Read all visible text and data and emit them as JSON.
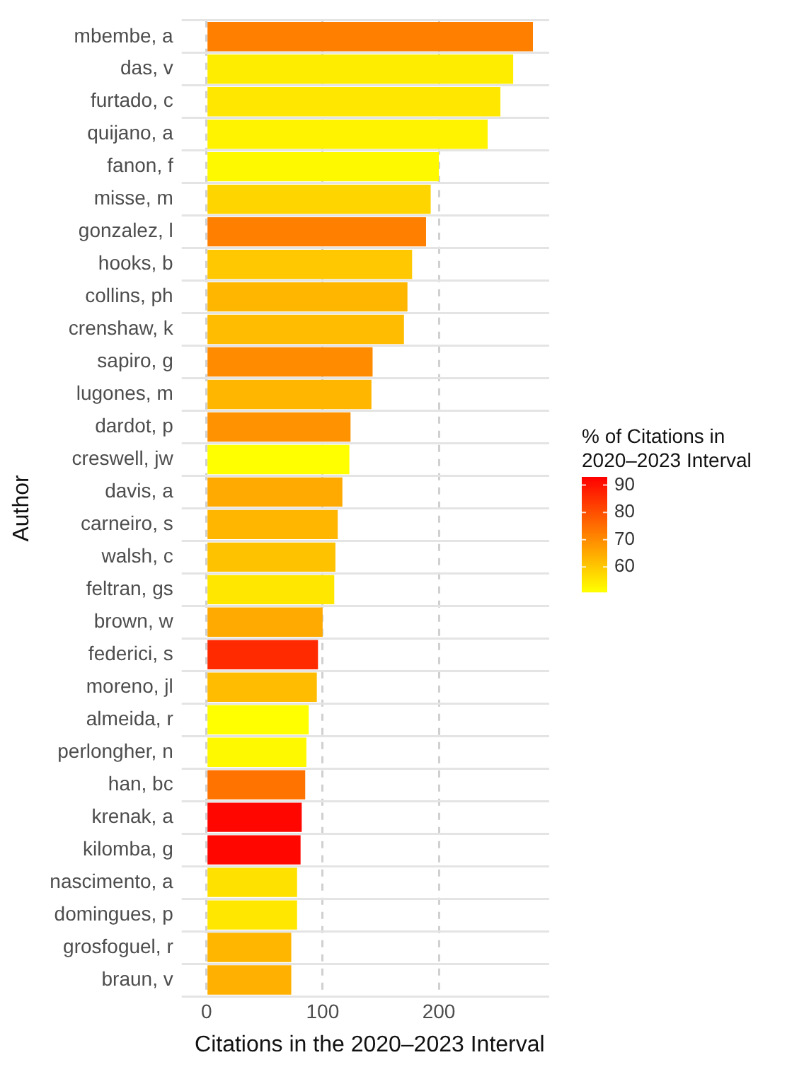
{
  "chart_data": {
    "type": "bar",
    "orientation": "horizontal",
    "xlabel": "Citations in the 2020–2023 Interval",
    "ylabel": "Author",
    "clabel": "% of Citations in 2020–2023 Interval",
    "categories": [
      "mbembe, a",
      "das, v",
      "furtado, c",
      "quijano, a",
      "fanon, f",
      "misse, m",
      "gonzalez, l",
      "hooks, b",
      "collins, ph",
      "crenshaw, k",
      "sapiro, g",
      "lugones, m",
      "dardot, p",
      "creswell, jw",
      "davis, a",
      "carneiro, s",
      "walsh, c",
      "feltran, gs",
      "brown, w",
      "federici, s",
      "moreno, jl",
      "almeida, r",
      "perlongher, n",
      "han, bc",
      "krenak, a",
      "kilomba, g",
      "nascimento, a",
      "domingues, p",
      "grosfoguel, r",
      "braun, v"
    ],
    "values": [
      281,
      264,
      253,
      242,
      200,
      193,
      189,
      177,
      173,
      170,
      143,
      142,
      124,
      123,
      117,
      113,
      111,
      110,
      100,
      96,
      95,
      88,
      86,
      85,
      82,
      81,
      78,
      78,
      73,
      73
    ],
    "cvalues": [
      72,
      54,
      55,
      53,
      52,
      58,
      72,
      60,
      63,
      62,
      70,
      63,
      69,
      51,
      65,
      63,
      61,
      55,
      65,
      86,
      62,
      51,
      52,
      74,
      92,
      92,
      56,
      55,
      63,
      64
    ],
    "clim": [
      51,
      93
    ],
    "cticks": [
      60,
      70,
      80,
      90
    ],
    "xlim": [
      -14,
      295
    ],
    "xticks": [
      0,
      100,
      200
    ],
    "grid": true,
    "legend": false
  }
}
